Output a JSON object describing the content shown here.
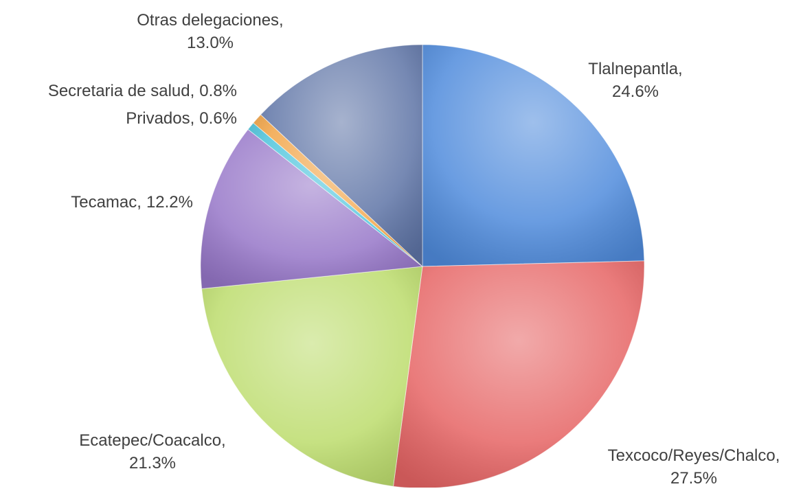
{
  "chart_data": {
    "type": "pie",
    "categories": [
      "Tlalnepantla,",
      "Texcoco/Reyes/Chalco,",
      "Ecatepec/Coacalco,",
      "Tecamac,",
      "Privados,",
      "Secretaria de salud,",
      "Otras delegaciones,"
    ],
    "values": [
      24.6,
      27.5,
      21.3,
      12.2,
      0.6,
      0.8,
      13.0
    ],
    "value_labels": [
      "24.6%",
      "27.5%",
      "21.3%",
      "12.2%",
      "0.6%",
      "0.8%",
      "13.0%"
    ],
    "colors": [
      "#4f8bdc",
      "#e66464",
      "#bcdc6c",
      "#9676c8",
      "#4cc4dc",
      "#f2a446",
      "#5e74a6"
    ]
  }
}
